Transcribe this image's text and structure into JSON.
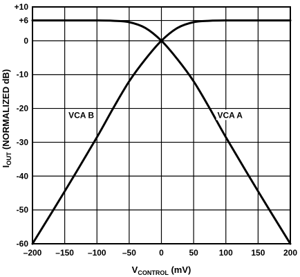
{
  "chart_data": {
    "type": "line",
    "title": "",
    "xlabel": {
      "main": "V",
      "subscript": "CONTROL",
      "suffix": " (mV)"
    },
    "ylabel": {
      "main": "I",
      "subscript": "OUT",
      "suffix": " (NORMALIZED dB)"
    },
    "xlim": [
      -200,
      200
    ],
    "ylim": [
      -60,
      10
    ],
    "x_ticks": [
      -200,
      -150,
      -100,
      -50,
      0,
      50,
      100,
      150,
      200
    ],
    "x_tick_labels": [
      "–200",
      "–150",
      "–100",
      "–50",
      "0",
      "50",
      "100",
      "150",
      "200"
    ],
    "y_ticks": [
      10,
      6,
      0,
      -10,
      -20,
      -30,
      -40,
      -50,
      -60
    ],
    "y_tick_labels": [
      "+10",
      "+6",
      "0",
      "-10",
      "-20",
      "-30",
      "-40",
      "-50",
      "-60"
    ],
    "grid": true,
    "series": [
      {
        "name": "VCA A",
        "x": [
          -200,
          -150,
          -100,
          -75,
          -50,
          -25,
          0,
          25,
          50,
          75,
          100,
          150,
          200
        ],
        "y": [
          6,
          6,
          6,
          5.9,
          5.5,
          3.8,
          0,
          -5.5,
          -12,
          -20,
          -28.5,
          -44.5,
          -60
        ]
      },
      {
        "name": "VCA B",
        "x": [
          -200,
          -150,
          -100,
          -75,
          -50,
          -25,
          0,
          25,
          50,
          75,
          100,
          150,
          200
        ],
        "y": [
          -60,
          -44.5,
          -28.5,
          -20,
          -12,
          -5.5,
          0,
          3.8,
          5.5,
          5.9,
          6,
          6,
          6
        ]
      }
    ]
  }
}
